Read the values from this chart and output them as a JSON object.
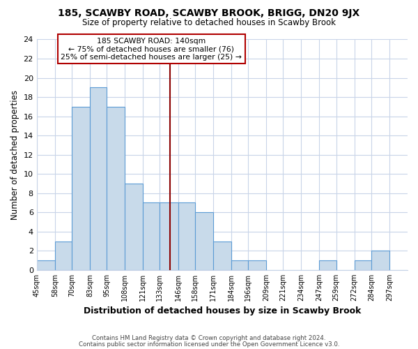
{
  "title": "185, SCAWBY ROAD, SCAWBY BROOK, BRIGG, DN20 9JX",
  "subtitle": "Size of property relative to detached houses in Scawby Brook",
  "xlabel": "Distribution of detached houses by size in Scawby Brook",
  "ylabel": "Number of detached properties",
  "bin_labels": [
    "45sqm",
    "58sqm",
    "70sqm",
    "83sqm",
    "95sqm",
    "108sqm",
    "121sqm",
    "133sqm",
    "146sqm",
    "158sqm",
    "171sqm",
    "184sqm",
    "196sqm",
    "209sqm",
    "221sqm",
    "234sqm",
    "247sqm",
    "259sqm",
    "272sqm",
    "284sqm",
    "297sqm"
  ],
  "bin_edges": [
    45,
    58,
    70,
    83,
    95,
    108,
    121,
    133,
    146,
    158,
    171,
    184,
    196,
    209,
    221,
    234,
    247,
    259,
    272,
    284,
    297,
    310
  ],
  "bar_heights": [
    1,
    3,
    17,
    19,
    17,
    9,
    7,
    7,
    7,
    6,
    3,
    1,
    1,
    0,
    0,
    0,
    1,
    0,
    1,
    2,
    0
  ],
  "bar_color": "#c8daea",
  "bar_edge_color": "#5b9bd5",
  "vline_x": 140,
  "vline_color": "#8b0000",
  "annotation_title": "185 SCAWBY ROAD: 140sqm",
  "annotation_line1": "← 75% of detached houses are smaller (76)",
  "annotation_line2": "25% of semi-detached houses are larger (25) →",
  "ylim": [
    0,
    24
  ],
  "yticks": [
    0,
    2,
    4,
    6,
    8,
    10,
    12,
    14,
    16,
    18,
    20,
    22,
    24
  ],
  "footer_line1": "Contains HM Land Registry data © Crown copyright and database right 2024.",
  "footer_line2": "Contains public sector information licensed under the Open Government Licence v3.0.",
  "bg_color": "#ffffff",
  "plot_bg_color": "#ffffff",
  "grid_color": "#c8d4e8"
}
